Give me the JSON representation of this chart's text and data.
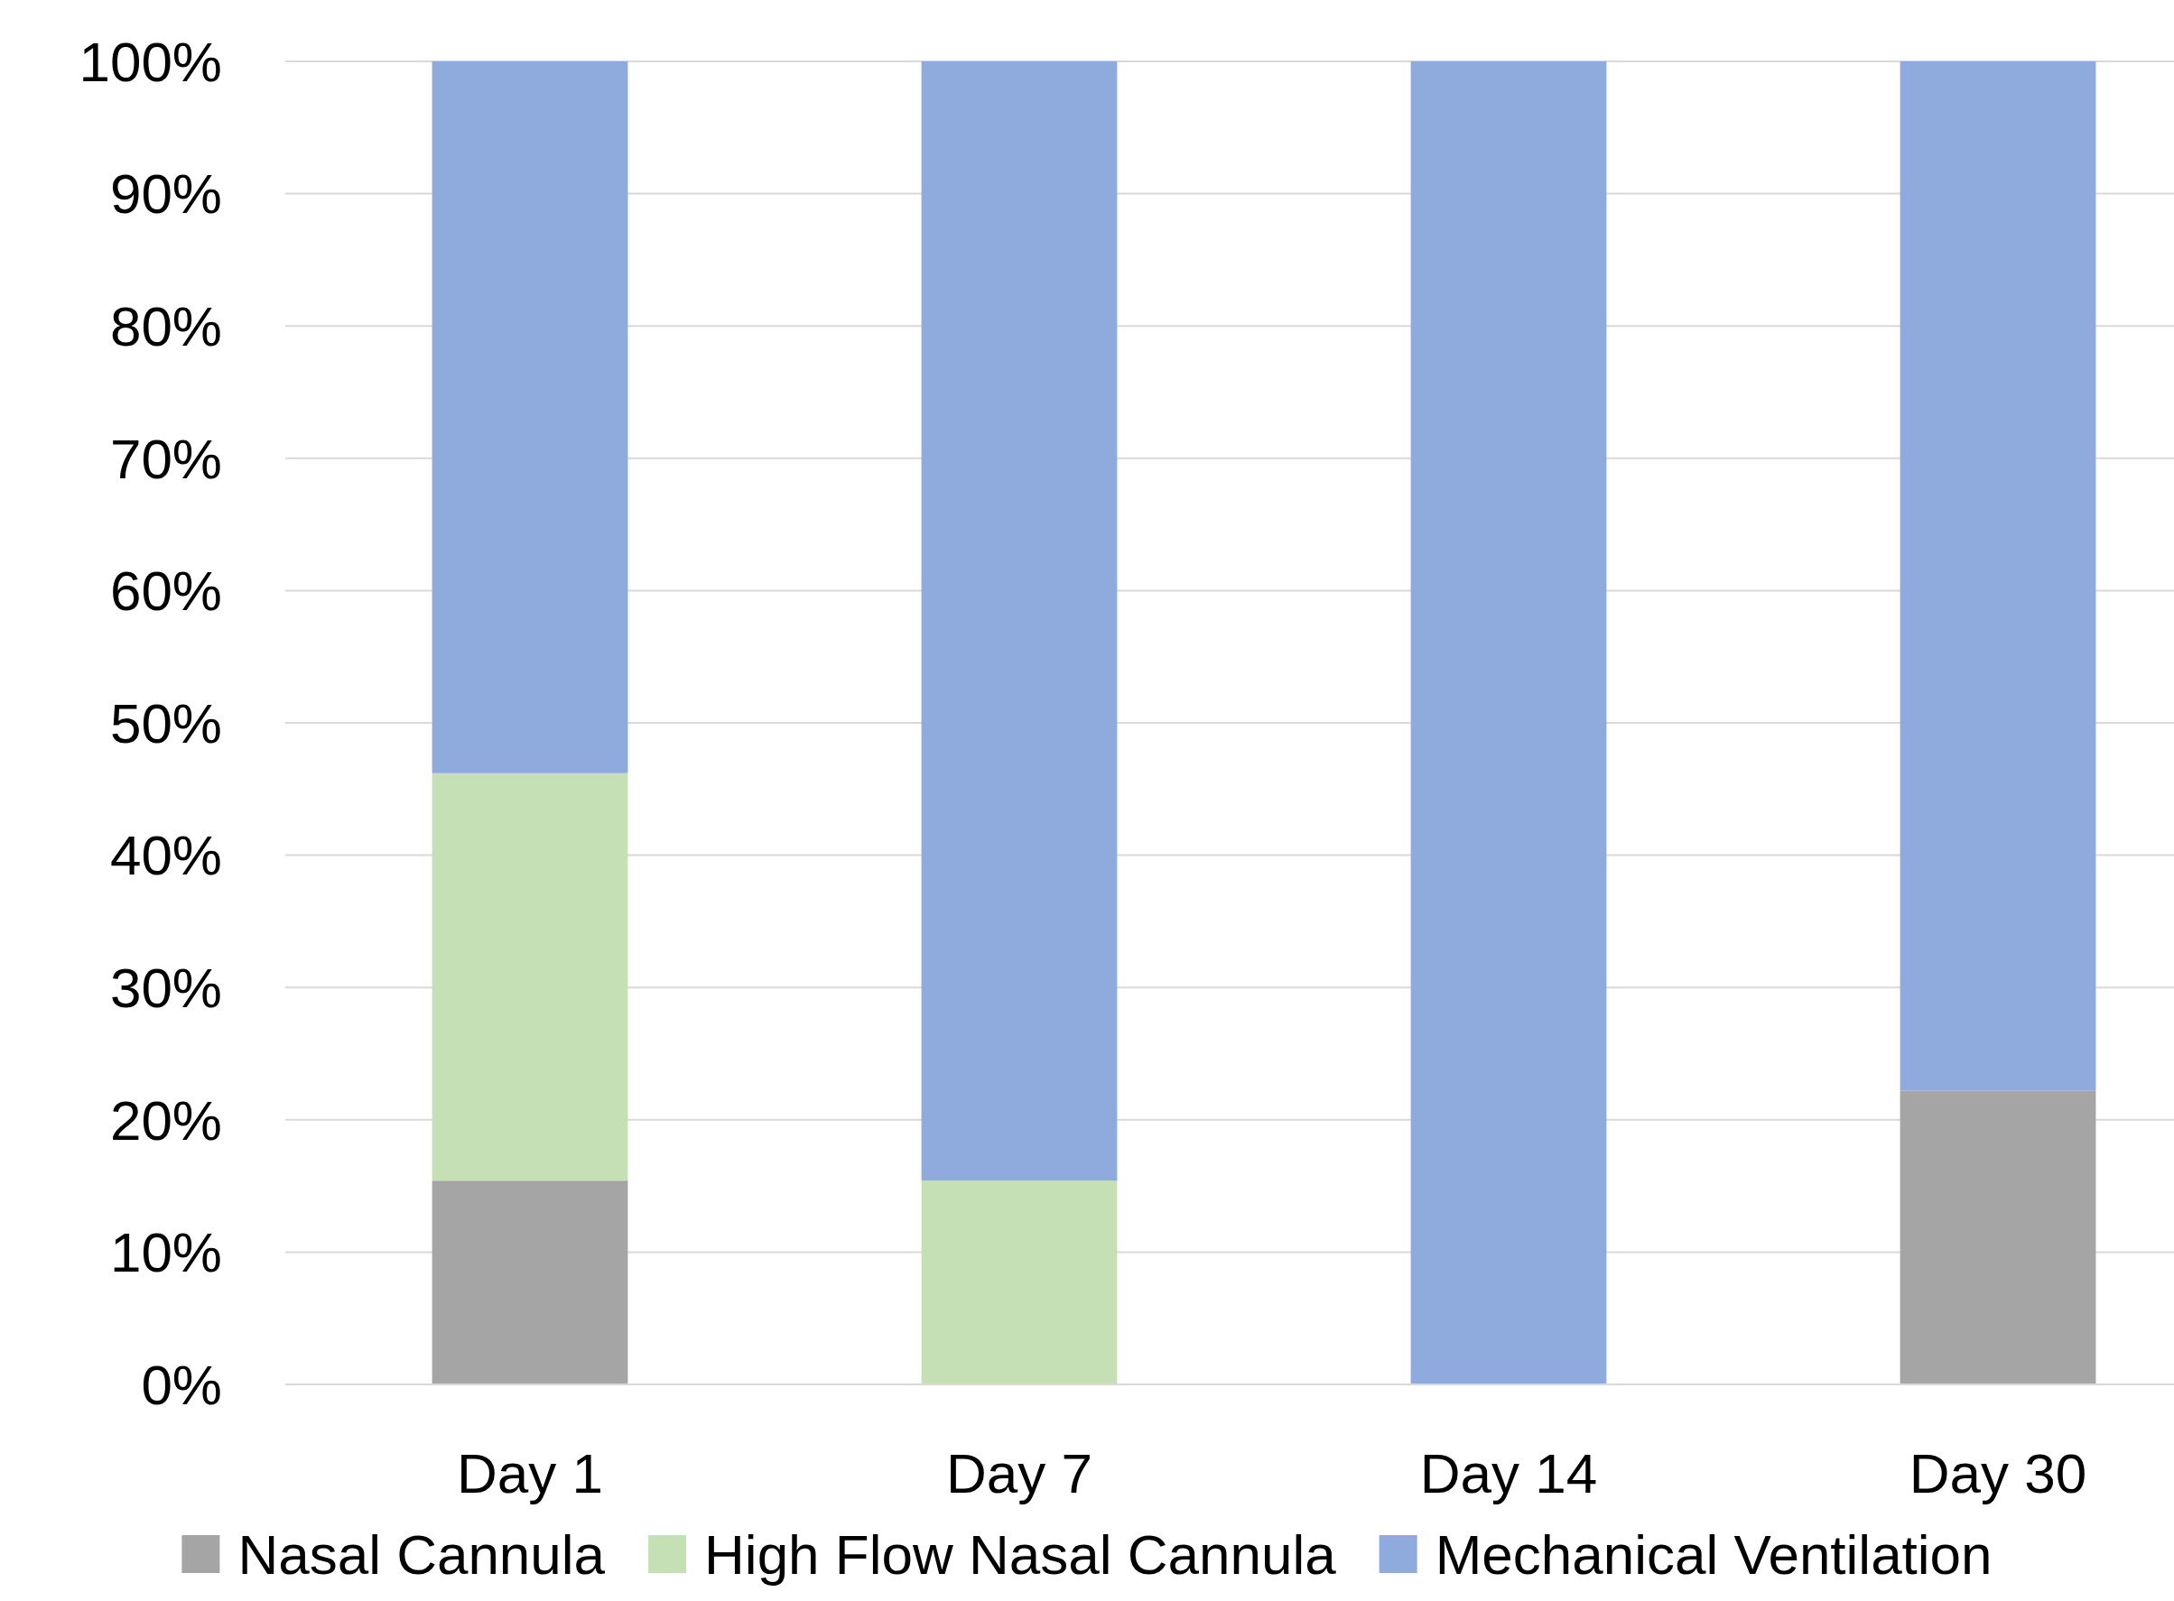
{
  "chart_data": {
    "type": "bar",
    "stacked": true,
    "categories": [
      "Day 1",
      "Day 7",
      "Day 14",
      "Day 30"
    ],
    "series": [
      {
        "name": "Nasal Cannula",
        "color": "#a5a5a5",
        "values": [
          15.4,
          0,
          0,
          22.2
        ]
      },
      {
        "name": "High Flow Nasal Cannula",
        "color": "#c5e0b4",
        "values": [
          30.8,
          15.4,
          0,
          0
        ]
      },
      {
        "name": "Mechanical Ventilation",
        "color": "#8faadc",
        "values": [
          53.8,
          84.6,
          100,
          77.8
        ]
      }
    ],
    "ylim": [
      0,
      100
    ],
    "yticks": [
      {
        "value": 0,
        "label": "0%"
      },
      {
        "value": 10,
        "label": "10%"
      },
      {
        "value": 20,
        "label": "20%"
      },
      {
        "value": 30,
        "label": "30%"
      },
      {
        "value": 40,
        "label": "40%"
      },
      {
        "value": 50,
        "label": "50%"
      },
      {
        "value": 60,
        "label": "60%"
      },
      {
        "value": 70,
        "label": "70%"
      },
      {
        "value": 80,
        "label": "80%"
      },
      {
        "value": 90,
        "label": "90%"
      },
      {
        "value": 100,
        "label": "100%"
      }
    ],
    "grid": "y",
    "legend": "bottom"
  }
}
